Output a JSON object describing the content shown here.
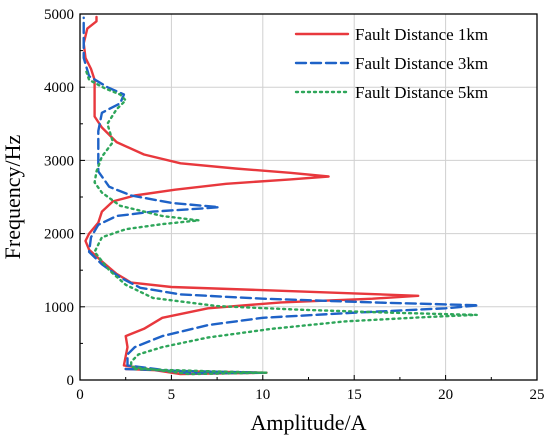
{
  "chart_data": {
    "type": "line",
    "title": "",
    "xlabel": "Amplitude/A",
    "ylabel": "Frequency/Hz",
    "xlim": [
      0,
      25
    ],
    "ylim": [
      0,
      5000
    ],
    "x_ticks": [
      "0",
      "5",
      "10",
      "15",
      "20",
      "25"
    ],
    "y_ticks": [
      "0",
      "1000",
      "2000",
      "3000",
      "4000",
      "5000"
    ],
    "grid": true,
    "legend_position": "top-right",
    "series": [
      {
        "name": "Fault Distance 1km",
        "color": "#e8383d",
        "dash": "solid",
        "points": [
          [
            2.5,
            150
          ],
          [
            5.5,
            120
          ],
          [
            10.2,
            100
          ],
          [
            5.5,
            80
          ],
          [
            2.4,
            200
          ],
          [
            2.6,
            450
          ],
          [
            2.5,
            600
          ],
          [
            3.5,
            700
          ],
          [
            4.5,
            850
          ],
          [
            7,
            980
          ],
          [
            11,
            1060
          ],
          [
            16,
            1110
          ],
          [
            18.5,
            1150
          ],
          [
            12,
            1210
          ],
          [
            5,
            1270
          ],
          [
            2.8,
            1330
          ],
          [
            2.0,
            1450
          ],
          [
            1.2,
            1620
          ],
          [
            0.5,
            1780
          ],
          [
            0.3,
            1900
          ],
          [
            0.5,
            2000
          ],
          [
            1.0,
            2150
          ],
          [
            1.2,
            2300
          ],
          [
            1.8,
            2440
          ],
          [
            3.0,
            2520
          ],
          [
            5.2,
            2600
          ],
          [
            8,
            2680
          ],
          [
            11.5,
            2740
          ],
          [
            13.6,
            2780
          ],
          [
            11.5,
            2830
          ],
          [
            8.5,
            2890
          ],
          [
            5.5,
            2960
          ],
          [
            3.5,
            3080
          ],
          [
            2.0,
            3250
          ],
          [
            1.2,
            3450
          ],
          [
            0.8,
            3600
          ],
          [
            0.8,
            3750
          ],
          [
            0.8,
            3900
          ],
          [
            0.8,
            4100
          ],
          [
            0.6,
            4250
          ],
          [
            0.3,
            4400
          ],
          [
            0.2,
            4600
          ],
          [
            0.4,
            4800
          ],
          [
            0.9,
            4900
          ],
          [
            0.9,
            4960
          ]
        ]
      },
      {
        "name": "Fault Distance 3km",
        "color": "#1e62c7",
        "dash": "long",
        "points": [
          [
            2.5,
            150
          ],
          [
            6,
            120
          ],
          [
            10,
            100
          ],
          [
            6,
            90
          ],
          [
            2.6,
            200
          ],
          [
            2.6,
            350
          ],
          [
            3.0,
            450
          ],
          [
            4.5,
            600
          ],
          [
            7,
            750
          ],
          [
            10,
            850
          ],
          [
            15,
            920
          ],
          [
            20,
            980
          ],
          [
            21.8,
            1020
          ],
          [
            16,
            1060
          ],
          [
            10,
            1110
          ],
          [
            5.5,
            1170
          ],
          [
            3.3,
            1260
          ],
          [
            2.2,
            1400
          ],
          [
            1.2,
            1580
          ],
          [
            0.5,
            1750
          ],
          [
            0.6,
            1950
          ],
          [
            1.0,
            2120
          ],
          [
            2.0,
            2240
          ],
          [
            4.0,
            2300
          ],
          [
            6.5,
            2340
          ],
          [
            7.6,
            2360
          ],
          [
            5,
            2420
          ],
          [
            2.8,
            2520
          ],
          [
            1.6,
            2640
          ],
          [
            1.0,
            2850
          ],
          [
            1.0,
            3100
          ],
          [
            1.0,
            3400
          ],
          [
            1.2,
            3650
          ],
          [
            2.2,
            3780
          ],
          [
            2.4,
            3900
          ],
          [
            1.5,
            4000
          ],
          [
            0.5,
            4150
          ],
          [
            0.2,
            4400
          ],
          [
            0.2,
            4700
          ],
          [
            0.2,
            4950
          ]
        ]
      },
      {
        "name": "Fault Distance 5km",
        "color": "#2ea65a",
        "dash": "dot",
        "points": [
          [
            3,
            150
          ],
          [
            7,
            120
          ],
          [
            10.2,
            100
          ],
          [
            6,
            80
          ],
          [
            2.8,
            180
          ],
          [
            2.8,
            250
          ],
          [
            3.2,
            350
          ],
          [
            4.5,
            450
          ],
          [
            7,
            580
          ],
          [
            10.5,
            700
          ],
          [
            14.5,
            800
          ],
          [
            19,
            860
          ],
          [
            21.7,
            890
          ],
          [
            17,
            920
          ],
          [
            12,
            960
          ],
          [
            7.5,
            1010
          ],
          [
            4.0,
            1120
          ],
          [
            2.5,
            1300
          ],
          [
            1.6,
            1500
          ],
          [
            0.8,
            1750
          ],
          [
            1.2,
            1950
          ],
          [
            2.5,
            2060
          ],
          [
            4.5,
            2130
          ],
          [
            6.5,
            2180
          ],
          [
            4.5,
            2240
          ],
          [
            2.2,
            2380
          ],
          [
            1.2,
            2560
          ],
          [
            0.8,
            2700
          ],
          [
            0.9,
            2850
          ],
          [
            1.2,
            3050
          ],
          [
            1.8,
            3250
          ],
          [
            1.5,
            3500
          ],
          [
            2.0,
            3700
          ],
          [
            2.5,
            3820
          ],
          [
            2.2,
            3900
          ],
          [
            1.4,
            3980
          ],
          [
            0.5,
            4100
          ],
          [
            0.3,
            4250
          ]
        ]
      }
    ]
  }
}
